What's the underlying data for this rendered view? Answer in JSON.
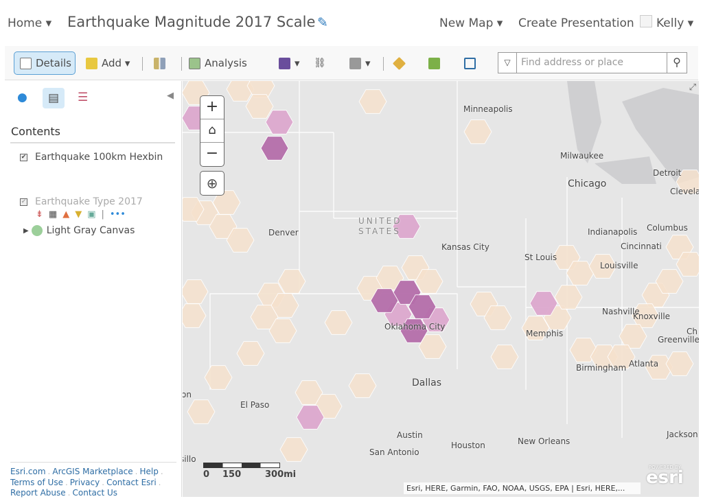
{
  "header": {
    "home": "Home",
    "title": "Earthquake Magnitude 2017 Scale",
    "new_map": "New Map",
    "create_presentation": "Create Presentation",
    "user": "Kelly"
  },
  "toolbar": {
    "details": "Details",
    "add": "Add",
    "analysis": "Analysis",
    "search_placeholder": "Find address or place"
  },
  "sidebar": {
    "contents": "Contents",
    "layers": [
      {
        "name": "Earthquake 100km Hexbin",
        "checked": true
      },
      {
        "name": "Earthquake Type 2017",
        "checked": true,
        "dimmed": true
      },
      {
        "name": "Light Gray Canvas"
      }
    ],
    "footer": [
      [
        "Esri.com",
        "ArcGIS Marketplace",
        "Help"
      ],
      [
        "Terms of Use",
        "Privacy",
        "Contact Esri"
      ],
      [
        "Report Abuse",
        "Contact Us"
      ]
    ]
  },
  "map": {
    "cities": [
      {
        "name": "Minneapolis"
      },
      {
        "name": "Milwaukee"
      },
      {
        "name": "Chicago"
      },
      {
        "name": "Detroit"
      },
      {
        "name": "Clevela"
      },
      {
        "name": "Denver"
      },
      {
        "name": "UNITED STATES"
      },
      {
        "name": "Kansas City"
      },
      {
        "name": "Indianapolis"
      },
      {
        "name": "Columbus"
      },
      {
        "name": "Cincinnati"
      },
      {
        "name": "St Louis"
      },
      {
        "name": "Louisville"
      },
      {
        "name": "Nashville"
      },
      {
        "name": "Knoxville"
      },
      {
        "name": "Memphis"
      },
      {
        "name": "Oklahoma City"
      },
      {
        "name": "Greenville"
      },
      {
        "name": "Ch"
      },
      {
        "name": "Atlanta"
      },
      {
        "name": "Birmingham"
      },
      {
        "name": "Dallas"
      },
      {
        "name": "El Paso"
      },
      {
        "name": "on"
      },
      {
        "name": "Austin"
      },
      {
        "name": "Houston"
      },
      {
        "name": "San Antonio"
      },
      {
        "name": "New Orleans"
      },
      {
        "name": "Jackson"
      },
      {
        "name": "sillo"
      }
    ],
    "scale": {
      "labels": [
        "0",
        "150",
        "300mi"
      ]
    },
    "attribution": "Esri, HERE, Garmin, FAO, NOAA, USGS, EPA | Esri, HERE,...",
    "esri_logo": "esri",
    "esri_powered": "POWERED BY",
    "hex_colors": {
      "low": "#f5e1cc",
      "mid": "#dca8cd",
      "high": "#b46eaa"
    }
  }
}
